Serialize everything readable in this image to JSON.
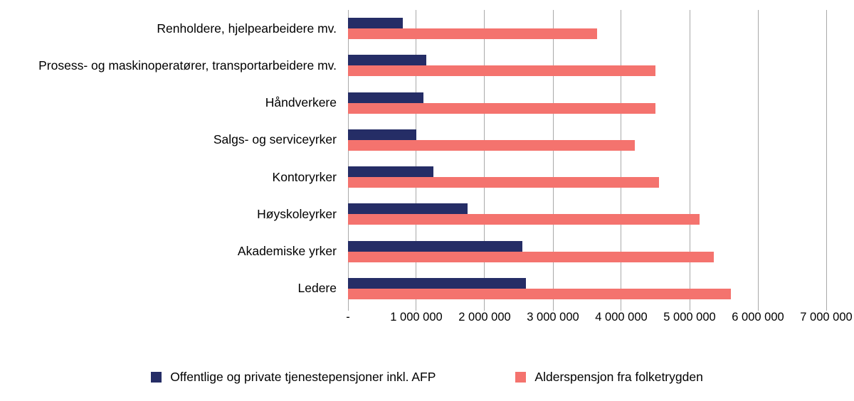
{
  "chart_data": {
    "type": "bar",
    "orientation": "horizontal",
    "title": "",
    "xlabel": "",
    "ylabel": "",
    "xlim": [
      0,
      7000000
    ],
    "grid": true,
    "legend_position": "bottom",
    "categories": [
      "Renholdere, hjelpearbeidere mv.",
      "Prosess- og maskinoperatører, transportarbeidere mv.",
      "Håndverkere",
      "Salgs- og serviceyrker",
      "Kontoryrker",
      "Høyskoleyrker",
      "Akademiske yrker",
      "Ledere"
    ],
    "series": [
      {
        "name": "Offentlige og private tjenestepensjoner inkl. AFP",
        "color": "#252d66",
        "values": [
          800000,
          1150000,
          1100000,
          1000000,
          1250000,
          1750000,
          2550000,
          2600000
        ]
      },
      {
        "name": "Alderspensjon fra folketrygden",
        "color": "#f4736e",
        "values": [
          3650000,
          4500000,
          4500000,
          4200000,
          4550000,
          5150000,
          5350000,
          5600000
        ]
      }
    ],
    "x_ticks": {
      "values": [
        0,
        1000000,
        2000000,
        3000000,
        4000000,
        5000000,
        6000000,
        7000000
      ],
      "labels": [
        "-",
        "1 000 000",
        "2 000 000",
        "3 000 000",
        "4 000 000",
        "5 000 000",
        "6 000 000",
        "7 000 000"
      ]
    },
    "gridline_color": "#a9a9a9"
  }
}
